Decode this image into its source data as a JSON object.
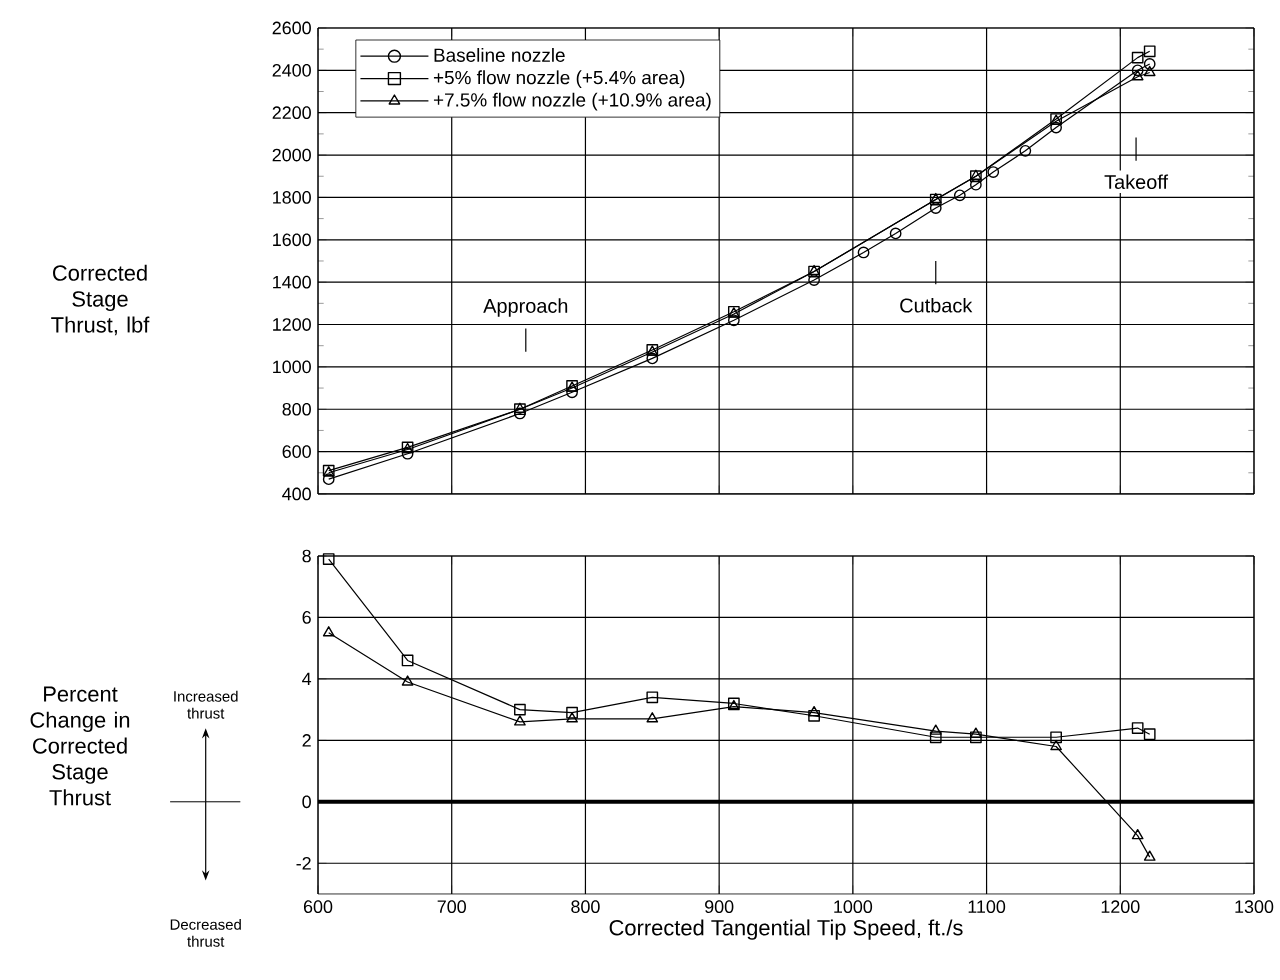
{
  "chart_data": [
    {
      "type": "line",
      "ylabel": "Corrected Stage Thrust, lbf",
      "xlim": [
        600,
        1300
      ],
      "xticks": [
        600,
        700,
        800,
        900,
        1000,
        1100,
        1200,
        1300
      ],
      "ylim": [
        400,
        2600
      ],
      "yticks": [
        400,
        600,
        800,
        1000,
        1200,
        1400,
        1600,
        1800,
        2000,
        2200,
        2400,
        2600
      ],
      "grid": true,
      "legend": "top left",
      "tick_labels": "y",
      "annotations": [
        "Approach",
        "Cutback",
        "Takeoff"
      ],
      "series": [
        {
          "name": "Baseline nozzle",
          "color": "#000000",
          "marker": "circle",
          "x": [
            608,
            667,
            751,
            790,
            850,
            911,
            971,
            1008,
            1032,
            1062,
            1080,
            1092,
            1105,
            1129,
            1152,
            1213,
            1222
          ],
          "values": [
            470,
            590,
            780,
            880,
            1040,
            1220,
            1410,
            1540,
            1630,
            1750,
            1810,
            1860,
            1920,
            2020,
            2130,
            2400,
            2430
          ]
        },
        {
          "name": "+5% flow nozzle (+5.4% area)",
          "color": "#000000",
          "marker": "square",
          "x": [
            608,
            667,
            751,
            790,
            850,
            911,
            971,
            1062,
            1092,
            1152,
            1213,
            1222
          ],
          "values": [
            510,
            620,
            800,
            910,
            1080,
            1260,
            1450,
            1790,
            1900,
            2170,
            2460,
            2490
          ]
        },
        {
          "name": "+7.5% flow nozzle (+10.9% area)",
          "color": "#000000",
          "marker": "triangle",
          "x": [
            608,
            667,
            751,
            790,
            850,
            911,
            971,
            1062,
            1092,
            1152,
            1213,
            1222
          ],
          "values": [
            500,
            610,
            800,
            900,
            1070,
            1250,
            1450,
            1790,
            1900,
            2160,
            2370,
            2390
          ]
        }
      ]
    },
    {
      "type": "line",
      "ylabel": "Percent Change in Corrected Stage Thrust",
      "xlabel": "Corrected Tangential Tip Speed, ft./s",
      "xlim": [
        600,
        1300
      ],
      "xticks": [
        600,
        700,
        800,
        900,
        1000,
        1100,
        1200,
        1300
      ],
      "ylim": [
        -3,
        8
      ],
      "yticks": [
        -2,
        0,
        2,
        4,
        6,
        8
      ],
      "grid": true,
      "annotations": [
        "Increased thrust",
        "Decreased thrust"
      ],
      "ref_lines": [
        {
          "axis": "y",
          "value": 0,
          "color": "#000000"
        }
      ],
      "series": [
        {
          "color": "#000000",
          "marker": "square",
          "x": [
            608,
            667,
            751,
            790,
            850,
            911,
            971,
            1062,
            1092,
            1152,
            1213,
            1222
          ],
          "values": [
            7.9,
            4.6,
            3.0,
            2.9,
            3.4,
            3.2,
            2.8,
            2.1,
            2.1,
            2.1,
            2.4,
            2.2
          ]
        },
        {
          "color": "#000000",
          "marker": "triangle",
          "x": [
            608,
            667,
            751,
            790,
            850,
            911,
            971,
            1062,
            1092,
            1152,
            1213,
            1222
          ],
          "values": [
            5.5,
            3.9,
            2.6,
            2.7,
            2.7,
            3.1,
            2.9,
            2.3,
            2.2,
            1.8,
            -1.1,
            -1.8
          ]
        }
      ]
    }
  ]
}
